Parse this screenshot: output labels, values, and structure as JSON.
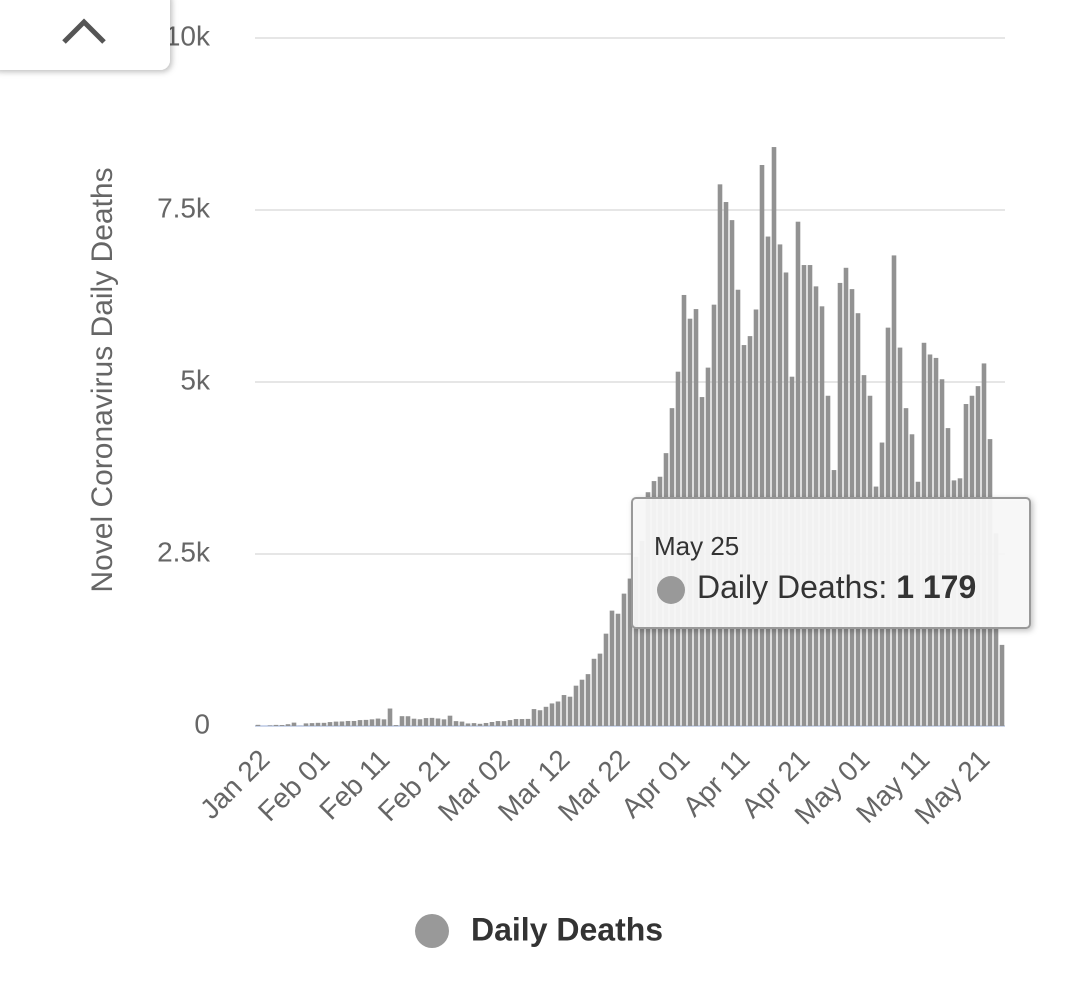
{
  "chart_data": {
    "type": "bar",
    "y_label": "Novel Coronavirus Daily Deaths",
    "categories": [
      "Jan 22",
      null,
      null,
      null,
      null,
      null,
      null,
      null,
      null,
      null,
      "Feb 01",
      null,
      null,
      null,
      null,
      null,
      null,
      null,
      null,
      null,
      "Feb 11",
      null,
      null,
      null,
      null,
      null,
      null,
      null,
      null,
      null,
      "Feb 21",
      null,
      null,
      null,
      null,
      null,
      null,
      null,
      null,
      null,
      "Mar 02",
      null,
      null,
      null,
      null,
      null,
      null,
      null,
      null,
      null,
      "Mar 12",
      null,
      null,
      null,
      null,
      null,
      null,
      null,
      null,
      null,
      "Mar 22",
      null,
      null,
      null,
      null,
      null,
      null,
      null,
      null,
      null,
      "Apr 01",
      null,
      null,
      null,
      null,
      null,
      null,
      null,
      null,
      null,
      "Apr 11",
      null,
      null,
      null,
      null,
      null,
      null,
      null,
      null,
      null,
      "Apr 21",
      null,
      null,
      null,
      null,
      null,
      null,
      null,
      null,
      null,
      "May 01",
      null,
      null,
      null,
      null,
      null,
      null,
      null,
      null,
      null,
      "May 11",
      null,
      null,
      null,
      null,
      null,
      null,
      null,
      null,
      null,
      "May 21",
      null,
      null,
      null,
      null
    ],
    "series": [
      {
        "name": "Daily Deaths",
        "color": "#929292",
        "values": [
          17,
          0,
          8,
          16,
          14,
          26,
          49,
          2,
          38,
          42,
          46,
          46,
          57,
          64,
          66,
          73,
          73,
          86,
          89,
          97,
          108,
          97,
          254,
          13,
          143,
          142,
          106,
          98,
          115,
          118,
          109,
          97,
          150,
          71,
          64,
          37,
          42,
          32,
          44,
          58,
          72,
          71,
          86,
          101,
          101,
          103,
          246,
          229,
          279,
          328,
          356,
          450,
          426,
          586,
          673,
          754,
          977,
          1052,
          1342,
          1677,
          1632,
          1924,
          2143,
          2458,
          2688,
          3398,
          3560,
          3623,
          3966,
          4620,
          5150,
          6265,
          5920,
          6060,
          4781,
          5209,
          6124,
          7873,
          7616,
          7353,
          6341,
          5537,
          5667,
          6054,
          8154,
          7114,
          8415,
          7000,
          6592,
          5077,
          7330,
          6700,
          6700,
          6390,
          6100,
          4800,
          3720,
          6440,
          6660,
          6350,
          6000,
          5100,
          4800,
          3480,
          4120,
          5790,
          6840,
          5500,
          4620,
          4240,
          3550,
          5570,
          5400,
          5350,
          5040,
          4330,
          3570,
          3600,
          4680,
          4800,
          4940,
          5270,
          4170,
          2800,
          1179
        ]
      }
    ],
    "ylim": [
      0,
      10000
    ],
    "yticks": [
      0,
      {
        "value": 2500,
        "label": "2.5k"
      },
      {
        "value": 5000,
        "label": "5k"
      },
      {
        "value": 7500,
        "label": "7.5k"
      },
      {
        "value": 10000,
        "label": "10k"
      }
    ],
    "grid": true,
    "legend": "bottom",
    "tooltip": {
      "date": "May 25",
      "series_label": "Daily Deaths:",
      "value_label": "1 179"
    }
  }
}
